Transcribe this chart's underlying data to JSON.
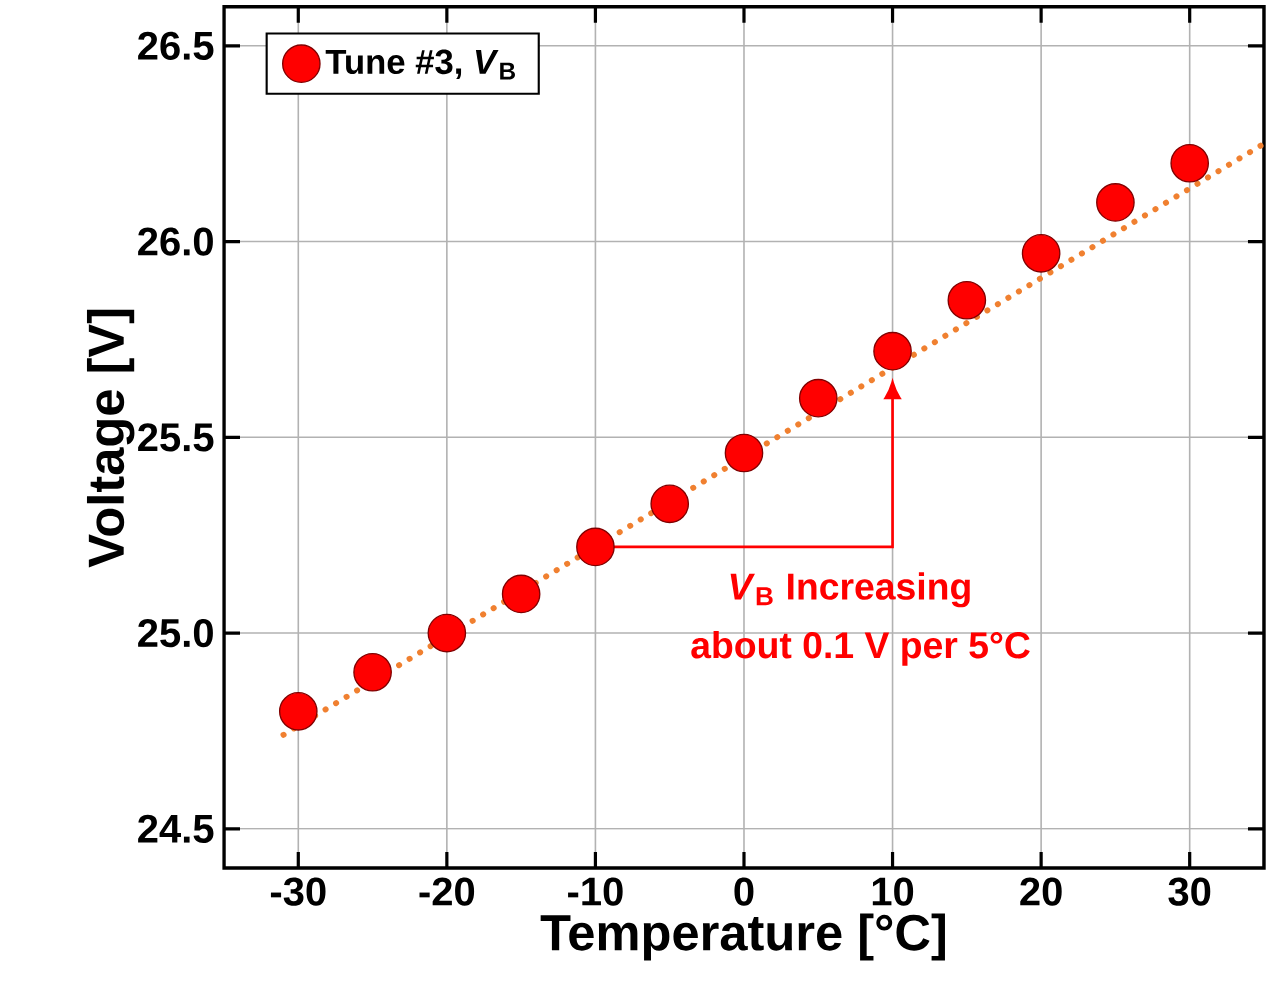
{
  "chart_data": {
    "type": "scatter",
    "xlabel": "Temperature [°C]",
    "ylabel": "Voltage [V]",
    "x": [
      -30,
      -25,
      -20,
      -15,
      -10,
      -5,
      0,
      5,
      10,
      15,
      20,
      25,
      30
    ],
    "series": [
      {
        "name": "Tune #3, *V*$_{B}$",
        "color": "#ff0000",
        "values": [
          24.8,
          24.9,
          25.0,
          25.1,
          25.22,
          25.33,
          25.46,
          25.6,
          25.72,
          25.85,
          25.97,
          26.1,
          26.2
        ]
      },
      {
        "type": "line",
        "x": [
          -31,
          35
        ],
        "values": [
          24.74,
          26.25
        ],
        "color": "#f08030",
        "line_style": "dotted",
        "marker": "none"
      }
    ],
    "xlim": [
      -35,
      35
    ],
    "ylim": [
      24.4,
      26.6
    ],
    "xticks": [
      -30,
      -20,
      -10,
      0,
      10,
      20,
      30
    ],
    "yticks": [
      24.5,
      {
        "value": 25,
        "label": "25.0"
      },
      25.5,
      {
        "value": 26,
        "label": "26.0"
      },
      26.5
    ],
    "grid": true,
    "legend": "top left",
    "marker": "circle",
    "annotations": [
      "*V*$_{B}$ Increasing",
      "about 0.1 V per 5°C"
    ]
  }
}
